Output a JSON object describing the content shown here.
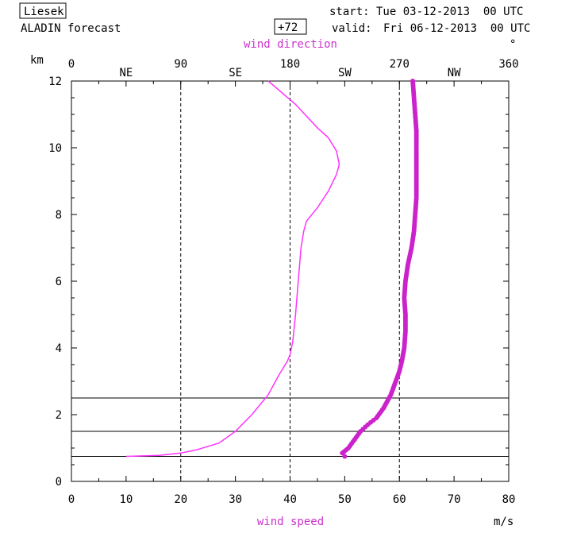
{
  "header": {
    "station": "Liesek",
    "model": "ALADIN forecast",
    "lead": "+72",
    "start_label": "start:",
    "start_value": "Tue 03-12-2013  00 UTC",
    "valid_label": "valid:",
    "valid_value": "Fri 06-12-2013  00 UTC"
  },
  "colors": {
    "speed": "#ff33ff",
    "direction": "#cc22cc",
    "axis": "#000000"
  },
  "chart_data": {
    "type": "line",
    "ylabel": "km",
    "ylim": [
      0,
      12
    ],
    "yticks": [
      "0",
      "2",
      "4",
      "6",
      "8",
      "10",
      "12"
    ],
    "x_bottom": {
      "label": "wind speed",
      "unit": "m/s",
      "range": [
        0,
        80
      ],
      "ticks": [
        "0",
        "10",
        "20",
        "30",
        "40",
        "50",
        "60",
        "70",
        "80"
      ]
    },
    "x_top": {
      "label": "wind direction",
      "unit": "°",
      "range": [
        0,
        360
      ],
      "ticks": [
        "0",
        "90",
        "180",
        "270",
        "360"
      ],
      "compass": [
        {
          "deg": 45,
          "label": "NE"
        },
        {
          "deg": 135,
          "label": "SE"
        },
        {
          "deg": 225,
          "label": "SW"
        },
        {
          "deg": 315,
          "label": "NW"
        }
      ]
    },
    "reference_directions": [
      90,
      180,
      270
    ],
    "levels_km": [
      0.75,
      1.5,
      2.5
    ],
    "speed": {
      "x": [
        10,
        16,
        20,
        23,
        27,
        30,
        33,
        36,
        38,
        39.5,
        40,
        40.5,
        41,
        41.5,
        42,
        42.5,
        43,
        45,
        47,
        48.5,
        49,
        48.5,
        47,
        45,
        41,
        36
      ],
      "y": [
        0.75,
        0.78,
        0.85,
        0.95,
        1.15,
        1.5,
        2.0,
        2.6,
        3.2,
        3.6,
        3.8,
        4.2,
        5.0,
        6.0,
        7.0,
        7.5,
        7.8,
        8.2,
        8.7,
        9.2,
        9.5,
        9.9,
        10.3,
        10.6,
        11.3,
        12.0
      ]
    },
    "direction": {
      "x": [
        225,
        223,
        228,
        232,
        238,
        244,
        251,
        257,
        263,
        267,
        270,
        272,
        274,
        275,
        275,
        274,
        275,
        277,
        280,
        282,
        283,
        284,
        284,
        284,
        284,
        284,
        283,
        282,
        281
      ],
      "y": [
        0.75,
        0.85,
        1.0,
        1.2,
        1.5,
        1.7,
        1.9,
        2.2,
        2.6,
        3.0,
        3.3,
        3.6,
        4.0,
        4.5,
        5.0,
        5.5,
        6.0,
        6.5,
        7.0,
        7.5,
        8.0,
        8.5,
        9.0,
        9.5,
        10.0,
        10.5,
        11.0,
        11.5,
        12.0
      ]
    }
  }
}
